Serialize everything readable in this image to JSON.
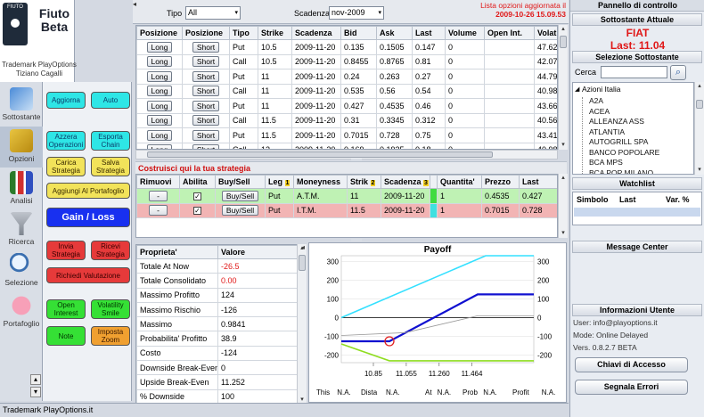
{
  "app": {
    "logo_badge": "FIUTO",
    "name_line1": "Fiuto",
    "name_line2": "Beta",
    "trademark_line1": "Trademark PlayOptions",
    "trademark_line2": "Tiziano Cagalli",
    "status_bar": "Trademark PlayOptions.it"
  },
  "nav": {
    "items": [
      {
        "label": "Sottostante"
      },
      {
        "label": "Opzioni"
      },
      {
        "label": "Analisi"
      },
      {
        "label": "Ricerca"
      },
      {
        "label": "Selezione"
      },
      {
        "label": "Portafoglio"
      }
    ]
  },
  "buttons": {
    "aggiorna": "Aggiorna",
    "auto": "Auto",
    "azzera": "Azzera Operazioni",
    "esporta": "Esporta Chain",
    "carica": "Carica Strategia",
    "salva": "Salva Strategia",
    "aggiungi": "Aggiungi Al Portafoglio",
    "gain": "Gain / Loss",
    "invia": "Invia Strategia",
    "ricevi": "Ricevi Strategia",
    "richiedi": "Richiedi Valutazione",
    "open_interest": "Open Interest",
    "volatility": "Volatility Smile",
    "note": "Note",
    "imposta_zoom": "Imposta Zoom"
  },
  "toolbar": {
    "tipo_label": "Tipo",
    "tipo_value": "All",
    "scadenza_label": "Scadenza",
    "scadenza_value": "nov-2009",
    "updated_line1": "Lista opzioni aggiornata il",
    "updated_line2": "2009-10-26 15.09.53"
  },
  "options_table": {
    "headers": [
      "Posizione",
      "Posizione",
      "Tipo",
      "Strike",
      "Scadenza",
      "Bid",
      "Ask",
      "Last",
      "Volume",
      "Open Int.",
      "Volatil"
    ],
    "rows": [
      {
        "b1": "Long",
        "b2": "Short",
        "tipo": "Put",
        "strike": "10.5",
        "scad": "2009-11-20",
        "bid": "0.135",
        "ask": "0.1505",
        "last": "0.147",
        "vol": "0",
        "oi": "",
        "volat": "47.625"
      },
      {
        "b1": "Long",
        "b2": "Short",
        "tipo": "Call",
        "strike": "10.5",
        "scad": "2009-11-20",
        "bid": "0.8455",
        "ask": "0.8765",
        "last": "0.81",
        "vol": "0",
        "oi": "",
        "volat": "42.074"
      },
      {
        "b1": "Long",
        "b2": "Short",
        "tipo": "Put",
        "strike": "11",
        "scad": "2009-11-20",
        "bid": "0.24",
        "ask": "0.263",
        "last": "0.27",
        "vol": "0",
        "oi": "",
        "volat": "44.792"
      },
      {
        "b1": "Long",
        "b2": "Short",
        "tipo": "Call",
        "strike": "11",
        "scad": "2009-11-20",
        "bid": "0.535",
        "ask": "0.56",
        "last": "0.54",
        "vol": "0",
        "oi": "",
        "volat": "40.982"
      },
      {
        "b1": "Long",
        "b2": "Short",
        "tipo": "Put",
        "strike": "11",
        "scad": "2009-11-20",
        "bid": "0.427",
        "ask": "0.4535",
        "last": "0.46",
        "vol": "0",
        "oi": "",
        "volat": "43.667"
      },
      {
        "b1": "Long",
        "b2": "Short",
        "tipo": "Call",
        "strike": "11.5",
        "scad": "2009-11-20",
        "bid": "0.31",
        "ask": "0.3345",
        "last": "0.312",
        "vol": "0",
        "oi": "",
        "volat": "40.567"
      },
      {
        "b1": "Long",
        "b2": "Short",
        "tipo": "Put",
        "strike": "11.5",
        "scad": "2009-11-20",
        "bid": "0.7015",
        "ask": "0.728",
        "last": "0.75",
        "vol": "0",
        "oi": "",
        "volat": "43.418"
      },
      {
        "b1": "Long",
        "b2": "Short",
        "tipo": "Call",
        "strike": "12",
        "scad": "2009-11-20",
        "bid": "0.169",
        "ask": "0.1925",
        "last": "0.18",
        "vol": "0",
        "oi": "",
        "volat": "40.985"
      }
    ]
  },
  "strategy": {
    "title": "Costruisci qui la tua strategia",
    "headers": [
      "Rimuovi",
      "Abilita",
      "Buy/Sell",
      "Leg",
      "Moneyness",
      "Strik",
      "Scadenza",
      "",
      "Quantita'",
      "Prezzo",
      "Last"
    ],
    "leg_badge": "1",
    "strik_badge": "2",
    "scad_badge": "3",
    "rows": [
      {
        "remove": "-",
        "buysell": "Buy/Sell",
        "leg": "Put",
        "moneyness": "A.T.M.",
        "strik": "11",
        "scad": "2009-11-20",
        "qty": "1",
        "prezzo": "0.4535",
        "last": "0.427"
      },
      {
        "remove": "-",
        "buysell": "Buy/Sell",
        "leg": "Put",
        "moneyness": "I.T.M.",
        "strik": "11.5",
        "scad": "2009-11-20",
        "qty": "1",
        "prezzo": "0.7015",
        "last": "0.728"
      }
    ]
  },
  "properties": {
    "headers": [
      "Proprieta'",
      "Valore"
    ],
    "rows": [
      {
        "k": "Totale At Now",
        "v": "-26.5",
        "red": true
      },
      {
        "k": "Totale Consolidato",
        "v": "0.00",
        "red": true
      },
      {
        "k": "Massimo Profitto",
        "v": "124",
        "red": false
      },
      {
        "k": "Massimo Rischio",
        "v": "-126",
        "red": false
      },
      {
        "k": "Massimo",
        "v": "0.9841",
        "red": false
      },
      {
        "k": "Probabilita' Profitto",
        "v": "38.9",
        "red": false
      },
      {
        "k": "Costo",
        "v": "-124",
        "red": false
      },
      {
        "k": "Downside Break-Even",
        "v": "0",
        "red": false
      },
      {
        "k": "Upside Break-Even",
        "v": "11.252",
        "red": false
      },
      {
        "k": "% Downside",
        "v": "100",
        "red": false
      }
    ]
  },
  "payoff": {
    "title": "Payoff",
    "footer": [
      {
        "label": "This",
        "value": "N.A."
      },
      {
        "label": "Dista",
        "value": "N.A."
      },
      {
        "label": "At",
        "value": "N.A."
      },
      {
        "label": "Prob",
        "value": "N.A."
      },
      {
        "label": "Profit",
        "value": "N.A."
      }
    ]
  },
  "chart_data": {
    "type": "line",
    "title": "Payoff",
    "x_ticks": [
      "10.85",
      "11.055",
      "11.260",
      "11.464"
    ],
    "y_left_ticks": [
      "300",
      "200",
      "100",
      "0",
      "-100",
      "-200"
    ],
    "y_right_ticks": [
      "300",
      "200",
      "100",
      "0",
      "-100",
      "-200"
    ],
    "xlim": [
      10.65,
      11.85
    ],
    "ylim": [
      -240,
      330
    ],
    "series": [
      {
        "color": "#33e0ff",
        "x": [
          10.65,
          11.55,
          11.85
        ],
        "y": [
          0,
          330,
          330
        ]
      },
      {
        "color": "#1010d0",
        "x": [
          10.65,
          10.95,
          11.5,
          11.85
        ],
        "y": [
          -126,
          -126,
          124,
          124
        ]
      },
      {
        "color": "#8fdd20",
        "x": [
          10.65,
          10.95,
          11.85
        ],
        "y": [
          -140,
          -230,
          -230
        ]
      },
      {
        "color": "#999999",
        "x": [
          10.65,
          11.05,
          11.5,
          11.85
        ],
        "y": [
          -95,
          -80,
          10,
          10
        ]
      }
    ],
    "marker": {
      "x": 10.95,
      "y": -126,
      "color": "#e02020"
    }
  },
  "right_panel": {
    "title": "Pannello di controllo",
    "underlying_header": "Sottostante Attuale",
    "underlying_name": "FIAT",
    "underlying_last": "Last: 11.04",
    "select_header": "Selezione Sottostante",
    "search_label": "Cerca",
    "tree_root": "Azioni Italia",
    "tree_items": [
      "A2A",
      "ACEA",
      "ALLEANZA ASS",
      "ATLANTIA",
      "AUTOGRILL SPA",
      "BANCO POPOLARE",
      "BCA MPS",
      "BCA POP MILANO"
    ],
    "watchlist_header": "Watchlist",
    "watchlist_cols": [
      "Simbolo",
      "Last",
      "Var. %"
    ],
    "message_header": "Message Center",
    "user_header": "Informazioni Utente",
    "user_line": "User: info@playoptions.it",
    "mode_line": "Mode: Online Delayed",
    "vers_line": "Vers. 0.8.2.7 BETA",
    "keys_button": "Chiavi di Accesso",
    "report_button": "Segnala Errori"
  },
  "colors": {
    "accent_red": "#e01818",
    "row_green": "#bff2b4",
    "row_red": "#f2b4b4"
  }
}
